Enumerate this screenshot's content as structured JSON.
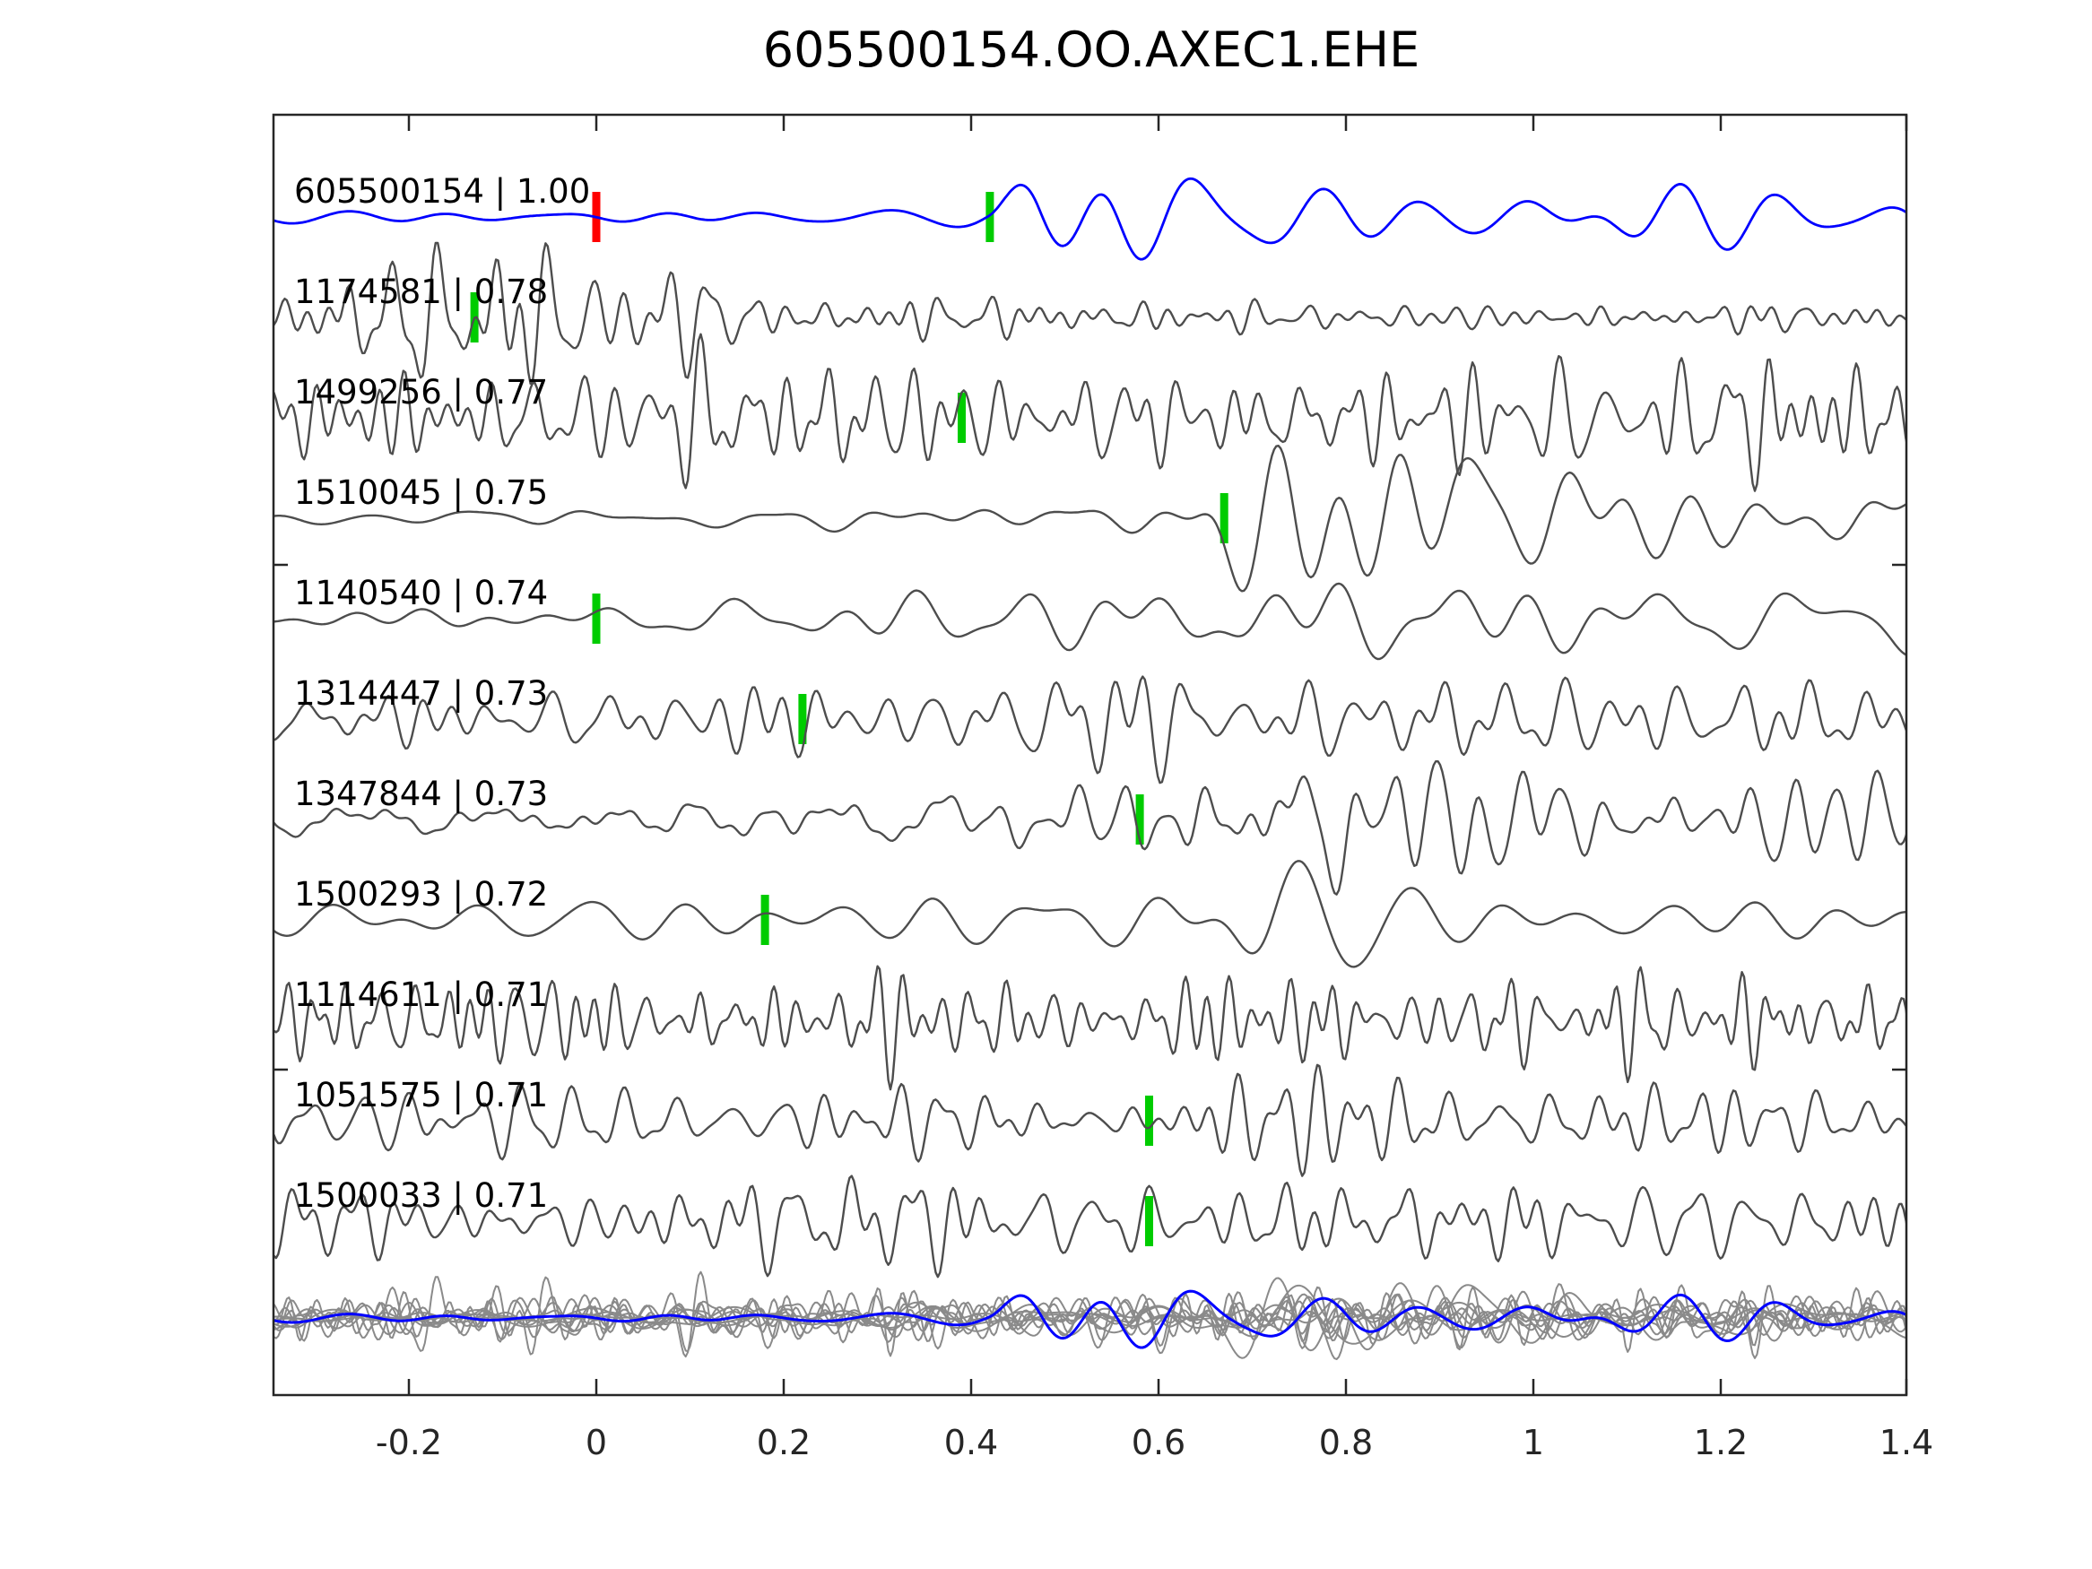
{
  "chart_data": {
    "type": "line",
    "title": "605500154.OO.AXEC1.EHE",
    "description": "Template matching waveform comparison: template event 605500154 (blue) over detected matching events (gray), with pick markers (red = template pick, green = matched picks); bottom row overlays all traces.",
    "x_axis": {
      "tick_values": [
        -0.2,
        0,
        0.2,
        0.4,
        0.6,
        0.8,
        1,
        1.2,
        1.4
      ],
      "tick_labels": [
        "-0.2",
        "0",
        "0.2",
        "0.4",
        "0.6",
        "0.8",
        "1",
        "1.2",
        "1.4"
      ],
      "xlim": [
        -0.344,
        1.402
      ],
      "grid": false
    },
    "colors": {
      "template_trace": "#0000ff",
      "match_trace": "#4d4d4d",
      "overlay_trace": "#8a8a8a",
      "pick_green": "#00cc00",
      "pick_red": "#ff0000",
      "axis": "#262626"
    },
    "legend": null,
    "traces": [
      {
        "id": "605500154",
        "cc": "1.00",
        "label": "605500154 | 1.00",
        "role": "template",
        "picks": [
          {
            "t": 0.0,
            "color_key": "pick_red"
          },
          {
            "t": 0.42,
            "color_key": "pick_green"
          }
        ],
        "synth": {
          "seed": 11,
          "freq": 9,
          "spread": 0.45,
          "envelope": [
            [
              -0.345,
              5
            ],
            [
              0.3,
              6
            ],
            [
              0.42,
              10
            ],
            [
              0.47,
              42
            ],
            [
              0.55,
              58
            ],
            [
              0.7,
              42
            ],
            [
              0.9,
              36
            ],
            [
              1.1,
              34
            ],
            [
              1.402,
              32
            ]
          ]
        }
      },
      {
        "id": "1174581",
        "cc": "0.78",
        "label": "1174581 | 0.78",
        "role": "match",
        "picks": [
          {
            "t": -0.13,
            "color_key": "pick_green"
          }
        ],
        "synth": {
          "seed": 22,
          "freq": 34,
          "spread": 0.5,
          "envelope": [
            [
              -0.345,
              14
            ],
            [
              -0.25,
              32
            ],
            [
              -0.18,
              55
            ],
            [
              -0.08,
              65
            ],
            [
              0.02,
              55
            ],
            [
              0.12,
              38
            ],
            [
              0.25,
              18
            ],
            [
              0.45,
              13
            ],
            [
              0.8,
              12
            ],
            [
              1.1,
              11
            ],
            [
              1.402,
              10
            ]
          ]
        }
      },
      {
        "id": "1499256",
        "cc": "0.77",
        "label": "1499256 | 0.77",
        "role": "match",
        "picks": [
          {
            "t": 0.39,
            "color_key": "pick_green"
          }
        ],
        "synth": {
          "seed": 33,
          "freq": 30,
          "spread": 0.5,
          "envelope": [
            [
              -0.345,
              34
            ],
            [
              0,
              36
            ],
            [
              0.3,
              40
            ],
            [
              0.6,
              36
            ],
            [
              0.9,
              34
            ],
            [
              1.2,
              40
            ],
            [
              1.402,
              44
            ]
          ]
        }
      },
      {
        "id": "1510045",
        "cc": "0.75",
        "label": "1510045 | 0.75",
        "role": "match",
        "picks": [
          {
            "t": 0.67,
            "color_key": "pick_green"
          }
        ],
        "synth": {
          "seed": 44,
          "freq": 9,
          "spread": 0.8,
          "envelope": [
            [
              -0.345,
              8
            ],
            [
              0.2,
              9
            ],
            [
              0.5,
              10
            ],
            [
              0.62,
              26
            ],
            [
              0.72,
              62
            ],
            [
              0.85,
              70
            ],
            [
              1.0,
              45
            ],
            [
              1.15,
              22
            ],
            [
              1.3,
              20
            ],
            [
              1.402,
              30
            ]
          ]
        }
      },
      {
        "id": "1140540",
        "cc": "0.74",
        "label": "1140540 | 0.74",
        "role": "match",
        "picks": [
          {
            "t": 0.0,
            "color_key": "pick_green"
          }
        ],
        "synth": {
          "seed": 55,
          "freq": 11,
          "spread": 0.55,
          "envelope": [
            [
              -0.345,
              9
            ],
            [
              0,
              13
            ],
            [
              0.2,
              22
            ],
            [
              0.4,
              30
            ],
            [
              0.55,
              48
            ],
            [
              0.7,
              52
            ],
            [
              0.85,
              38
            ],
            [
              1.05,
              30
            ],
            [
              1.25,
              32
            ],
            [
              1.402,
              28
            ]
          ]
        }
      },
      {
        "id": "1314447",
        "cc": "0.73",
        "label": "1314447 | 0.73",
        "role": "match",
        "picks": [
          {
            "t": 0.22,
            "color_key": "pick_green"
          }
        ],
        "synth": {
          "seed": 66,
          "freq": 23,
          "spread": 0.5,
          "envelope": [
            [
              -0.345,
              22
            ],
            [
              0,
              26
            ],
            [
              0.3,
              30
            ],
            [
              0.55,
              40
            ],
            [
              0.7,
              44
            ],
            [
              0.85,
              30
            ],
            [
              1.05,
              28
            ],
            [
              1.25,
              26
            ],
            [
              1.402,
              28
            ]
          ]
        }
      },
      {
        "id": "1347844",
        "cc": "0.73",
        "label": "1347844 | 0.73",
        "role": "match",
        "picks": [
          {
            "t": 0.58,
            "color_key": "pick_green"
          }
        ],
        "synth": {
          "seed": 77,
          "freq": 24,
          "spread": 0.75,
          "envelope": [
            [
              -0.345,
              16
            ],
            [
              0,
              20
            ],
            [
              0.3,
              24
            ],
            [
              0.55,
              34
            ],
            [
              0.68,
              58
            ],
            [
              0.8,
              52
            ],
            [
              0.95,
              36
            ],
            [
              1.15,
              30
            ],
            [
              1.402,
              30
            ]
          ]
        }
      },
      {
        "id": "1500293",
        "cc": "0.72",
        "label": "1500293 | 0.72",
        "role": "match",
        "picks": [
          {
            "t": 0.18,
            "color_key": "pick_green"
          }
        ],
        "synth": {
          "seed": 88,
          "freq": 9,
          "spread": 0.55,
          "envelope": [
            [
              -0.345,
              10
            ],
            [
              0,
              14
            ],
            [
              0.22,
              26
            ],
            [
              0.35,
              30
            ],
            [
              0.5,
              20
            ],
            [
              0.62,
              34
            ],
            [
              0.72,
              44
            ],
            [
              0.9,
              28
            ],
            [
              1.1,
              22
            ],
            [
              1.402,
              18
            ]
          ]
        }
      },
      {
        "id": "1114611",
        "cc": "0.71",
        "label": "1114611 | 0.71",
        "role": "match",
        "picks": [],
        "synth": {
          "seed": 99,
          "freq": 37,
          "spread": 0.45,
          "envelope": [
            [
              -0.345,
              34
            ],
            [
              0.2,
              38
            ],
            [
              0.5,
              40
            ],
            [
              0.8,
              44
            ],
            [
              1.1,
              40
            ],
            [
              1.402,
              42
            ]
          ]
        }
      },
      {
        "id": "1051575",
        "cc": "0.71",
        "label": "1051575 | 0.71",
        "role": "match",
        "picks": [
          {
            "t": 0.59,
            "color_key": "pick_green"
          }
        ],
        "synth": {
          "seed": 110,
          "freq": 29,
          "spread": 0.5,
          "envelope": [
            [
              -0.345,
              24
            ],
            [
              0,
              28
            ],
            [
              0.3,
              30
            ],
            [
              0.55,
              34
            ],
            [
              0.8,
              50
            ],
            [
              0.95,
              42
            ],
            [
              1.2,
              32
            ],
            [
              1.402,
              30
            ]
          ]
        }
      },
      {
        "id": "1500033",
        "cc": "0.71",
        "label": "1500033 | 0.71",
        "role": "match",
        "picks": [
          {
            "t": 0.59,
            "color_key": "pick_green"
          }
        ],
        "synth": {
          "seed": 121,
          "freq": 29,
          "spread": 0.5,
          "envelope": [
            [
              -0.345,
              26
            ],
            [
              0,
              30
            ],
            [
              0.25,
              38
            ],
            [
              0.5,
              32
            ],
            [
              0.75,
              30
            ],
            [
              1.0,
              32
            ],
            [
              1.2,
              28
            ],
            [
              1.402,
              30
            ]
          ]
        }
      }
    ],
    "overlay_row": {
      "content": "all matched traces overlaid in light gray with template in blue",
      "match_amp_scale": 0.55,
      "template_amp_scale": 0.7
    }
  }
}
